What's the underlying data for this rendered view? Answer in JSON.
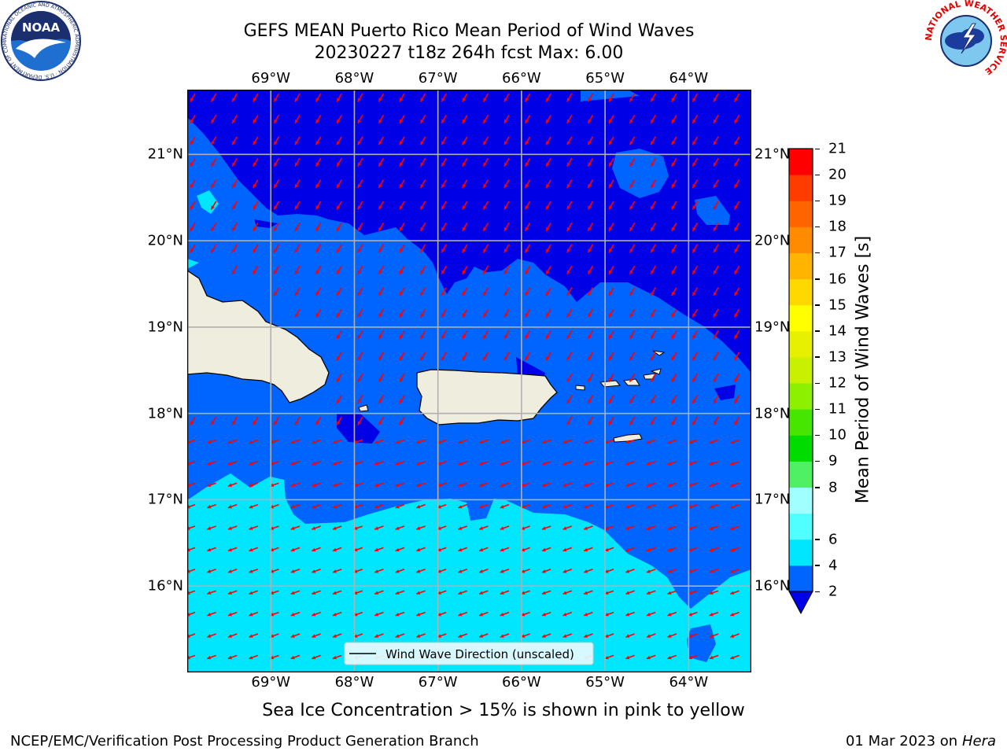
{
  "title": {
    "line1": "GEFS MEAN Puerto Rico Mean Period of Wind Waves",
    "line2": "20230227 t18z 264h fcst   Max: 6.00"
  },
  "logos": {
    "left": {
      "text": "NOAA",
      "icon": "noaa-logo-icon",
      "ring_text": "NATIONAL OCEANIC AND ATMOSPHERIC ADMINISTRATION · U.S. DEPARTMENT OF COMMERCE"
    },
    "right": {
      "icon": "nws-logo-icon",
      "ring_text": "NATIONAL WEATHER SERVICE"
    }
  },
  "map": {
    "lon_ticks": [
      "69°W",
      "68°W",
      "67°W",
      "66°W",
      "65°W",
      "64°W"
    ],
    "lat_ticks": [
      "21°N",
      "20°N",
      "19°N",
      "18°N",
      "17°N",
      "16°N"
    ],
    "lon_range": [
      -70,
      -63.25
    ],
    "lat_range": [
      15,
      21.75
    ],
    "legend_label": "Wind Wave Direction (unscaled)",
    "arrow_color": "#ff0000",
    "land_color": "#efedde",
    "grid": true
  },
  "colorbar": {
    "label": "Mean Period of Wind Waves [s]",
    "ticks": [
      "21",
      "20",
      "19",
      "18",
      "17",
      "16",
      "15",
      "14",
      "13",
      "12",
      "11",
      "10",
      "9",
      "8",
      "6",
      "4",
      "2"
    ],
    "bands": [
      "#0000e6",
      "#0064ff",
      "#00e6ff",
      "#50ffff",
      "#a0ffff",
      "#50f064",
      "#00dc00",
      "#46e600",
      "#8cf000",
      "#c8f000",
      "#e6f000",
      "#ffff00",
      "#ffd800",
      "#ffb400",
      "#ff8c00",
      "#ff6400",
      "#ff3c00",
      "#ff0000"
    ]
  },
  "note": "Sea Ice Concentration > 15% is shown in pink to yellow",
  "footer": {
    "left": "NCEP/EMC/Verification Post Processing Product Generation Branch",
    "date": "01 Mar 2023",
    "on": "on",
    "host": "Hera"
  }
}
